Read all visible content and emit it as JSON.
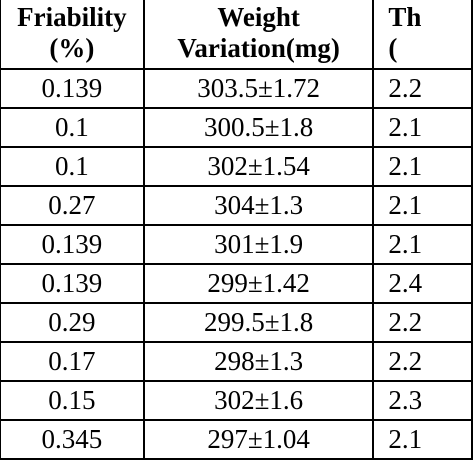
{
  "table": {
    "headers": [
      {
        "line1": "Friability",
        "line2": "(%)"
      },
      {
        "line1": "Weight",
        "line2": "Variation(mg)"
      },
      {
        "line1": "Th",
        "line2": "("
      }
    ],
    "rows": [
      [
        "0.139",
        "303.5±1.72",
        "2.2"
      ],
      [
        "0.1",
        "300.5±1.8",
        "2.1"
      ],
      [
        "0.1",
        "302±1.54",
        "2.1"
      ],
      [
        "0.27",
        "304±1.3",
        "2.1"
      ],
      [
        "0.139",
        "301±1.9",
        "2.1"
      ],
      [
        "0.139",
        "299±1.42",
        "2.4"
      ],
      [
        "0.29",
        "299.5±1.8",
        "2.2"
      ],
      [
        "0.17",
        "298±1.3",
        "2.2"
      ],
      [
        "0.15",
        "302±1.6",
        "2.3"
      ],
      [
        "0.345",
        "297±1.04",
        "2.1"
      ]
    ]
  }
}
